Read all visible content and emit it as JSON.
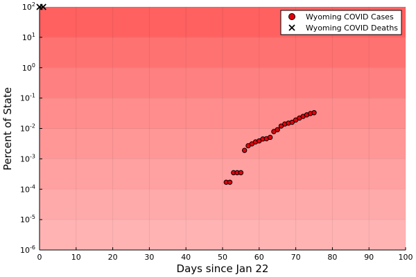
{
  "chart_data": {
    "type": "scatter",
    "title": "",
    "xlabel": "Days since Jan 22",
    "ylabel": "Percent of State",
    "xlim": [
      0,
      100
    ],
    "ylim_log10": [
      -6,
      2
    ],
    "y_scale": "log",
    "x_ticks": [
      "0",
      "10",
      "20",
      "30",
      "40",
      "50",
      "60",
      "70",
      "80",
      "90",
      "100"
    ],
    "y_ticks": [
      {
        "base": "10",
        "exp": "-6"
      },
      {
        "base": "10",
        "exp": "-5"
      },
      {
        "base": "10",
        "exp": "-4"
      },
      {
        "base": "10",
        "exp": "-3"
      },
      {
        "base": "10",
        "exp": "-2"
      },
      {
        "base": "10",
        "exp": "-1"
      },
      {
        "base": "10",
        "exp": "0"
      },
      {
        "base": "10",
        "exp": "1"
      },
      {
        "base": "10",
        "exp": "2"
      }
    ],
    "background_bands": [
      "#ffb3b3",
      "#ffaaaa",
      "#ffa1a1",
      "#ff9797",
      "#ff8d8d",
      "#ff8080",
      "#ff7272",
      "#ff6060"
    ],
    "grid": true,
    "legend_position": "top-right",
    "series": [
      {
        "name": "Wyoming COVID Cases",
        "marker": "circle",
        "color": "#e3000b",
        "x": [
          51,
          52,
          53,
          54,
          55,
          56,
          57,
          58,
          59,
          60,
          61,
          62,
          63,
          64,
          65,
          66,
          67,
          68,
          69,
          70,
          71,
          72,
          73,
          74,
          75
        ],
        "y": [
          0.00017,
          0.00017,
          0.00035,
          0.00035,
          0.00035,
          0.0019,
          0.0027,
          0.0031,
          0.0036,
          0.0039,
          0.0045,
          0.0046,
          0.0051,
          0.0079,
          0.0091,
          0.012,
          0.014,
          0.015,
          0.016,
          0.019,
          0.022,
          0.025,
          0.028,
          0.031,
          0.033
        ]
      },
      {
        "name": "Wyoming COVID Deaths",
        "marker": "x",
        "color": "#000000",
        "x": [
          0,
          1
        ],
        "y": [
          100,
          100
        ]
      }
    ]
  }
}
